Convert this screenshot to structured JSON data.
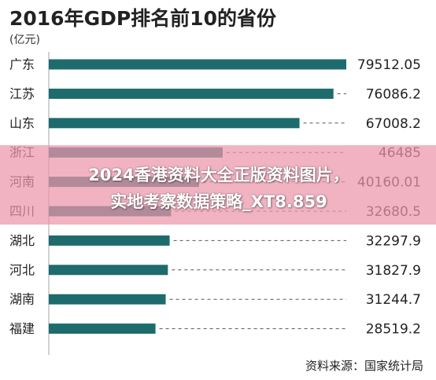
{
  "title": "2016年GDP排名前10的省份",
  "unit": "(亿元)",
  "source": "资料来源：国家统计局",
  "overlay": {
    "line1": "2024香港资料大全正版资料图片，",
    "line2": "实地考察数据策略_XT8.859"
  },
  "colors": {
    "bar": "#1e6b6d",
    "leader": "#555555",
    "axis": "#b5b5b5"
  },
  "chart_data": {
    "type": "bar",
    "orientation": "horizontal",
    "categories": [
      "广东",
      "江苏",
      "山东",
      "浙江",
      "河南",
      "四川",
      "湖北",
      "河北",
      "湖南",
      "福建"
    ],
    "values": [
      79512.05,
      76086.2,
      67008.2,
      46485,
      40160.01,
      32680.5,
      32297.9,
      31827.9,
      31244.7,
      28519.2
    ],
    "value_labels": [
      "79512.05",
      "76086.2",
      "67008.2",
      "46485",
      "40160.01",
      "32680.5",
      "32297.9",
      "31827.9",
      "31244.7",
      "28519.2"
    ],
    "xlim": [
      0,
      79512.05
    ],
    "xlabel": "",
    "ylabel": "",
    "grid": false,
    "legend": "none"
  }
}
